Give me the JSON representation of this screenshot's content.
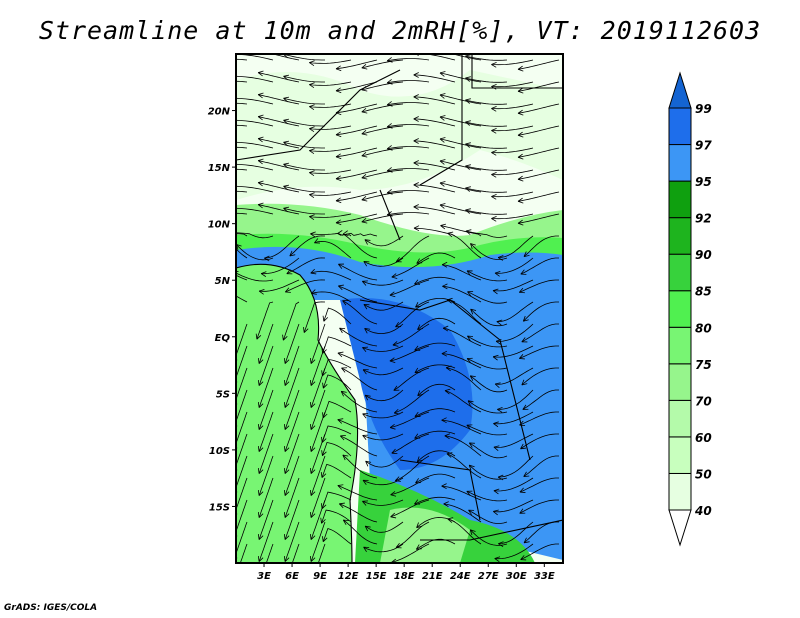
{
  "title": "Streamline at 10m and 2mRH[%], VT: 2019112603",
  "credit": "GrADS: IGES/COLA",
  "map": {
    "lon_range": [
      0,
      35
    ],
    "lat_range": [
      -20,
      25
    ],
    "lat_labels": [
      {
        "lat": 20,
        "label": "20N"
      },
      {
        "lat": 15,
        "label": "15N"
      },
      {
        "lat": 10,
        "label": "10N"
      },
      {
        "lat": 5,
        "label": "5N"
      },
      {
        "lat": 0,
        "label": "EQ"
      },
      {
        "lat": -5,
        "label": "5S"
      },
      {
        "lat": -10,
        "label": "10S"
      },
      {
        "lat": -15,
        "label": "15S"
      }
    ],
    "lon_labels": [
      {
        "lon": 3,
        "label": "3E"
      },
      {
        "lon": 6,
        "label": "6E"
      },
      {
        "lon": 9,
        "label": "9E"
      },
      {
        "lon": 12,
        "label": "12E"
      },
      {
        "lon": 15,
        "label": "15E"
      },
      {
        "lon": 18,
        "label": "18E"
      },
      {
        "lon": 21,
        "label": "21E"
      },
      {
        "lon": 24,
        "label": "24E"
      },
      {
        "lon": 27,
        "label": "27E"
      },
      {
        "lon": 30,
        "label": "30E"
      },
      {
        "lon": 33,
        "label": "33E"
      }
    ]
  },
  "colorbar": {
    "labels": [
      "40",
      "50",
      "60",
      "70",
      "75",
      "80",
      "85",
      "90",
      "92",
      "95",
      "97",
      "99"
    ],
    "colors": [
      "#e6ffe1",
      "#c8ffbe",
      "#b4faaa",
      "#96f58c",
      "#78f573",
      "#50f050",
      "#37d23c",
      "#1eb41e",
      "#0fa00f",
      "#3c96f5",
      "#1e6eeb",
      "#1464d2"
    ],
    "below_color": "#ffffff"
  }
}
